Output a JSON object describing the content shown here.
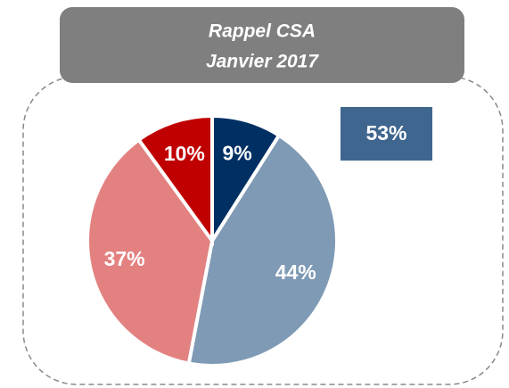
{
  "chart_data": {
    "type": "pie",
    "title": "Rappel CSA",
    "subtitle": "Janvier 2017",
    "values": [
      9,
      44,
      37,
      10
    ],
    "value_labels": [
      "9%",
      "44%",
      "37%",
      "10%"
    ],
    "colors": [
      "#002f63",
      "#7f9ab5",
      "#e38181",
      "#c00000"
    ],
    "annotation": "53%"
  }
}
